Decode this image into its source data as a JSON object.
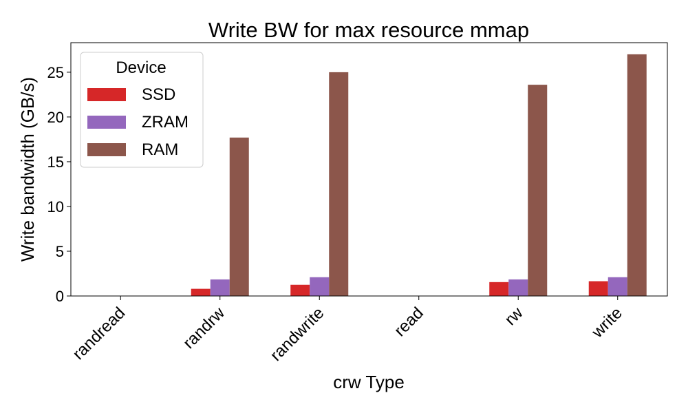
{
  "chart_data": {
    "type": "bar",
    "title": "Write BW for max resource mmap",
    "xlabel": "crw Type",
    "ylabel": "Write bandwidth (GB/s)",
    "categories": [
      "randread",
      "randrw",
      "randwrite",
      "read",
      "rw",
      "write"
    ],
    "series": [
      {
        "name": "SSD",
        "color": "#d62728",
        "values": [
          0,
          0.8,
          1.25,
          0,
          1.55,
          1.65
        ]
      },
      {
        "name": "ZRAM",
        "color": "#9467bd",
        "values": [
          0,
          1.85,
          2.1,
          0,
          1.85,
          2.1
        ]
      },
      {
        "name": "RAM",
        "color": "#8c564b",
        "values": [
          0,
          17.7,
          25.0,
          0,
          23.6,
          27.0
        ]
      }
    ],
    "ylim": [
      0,
      28.3
    ],
    "yticks": [
      0,
      5,
      10,
      15,
      20,
      25
    ],
    "grid": false,
    "legend": {
      "title": "Device",
      "placement": "top-left"
    }
  }
}
